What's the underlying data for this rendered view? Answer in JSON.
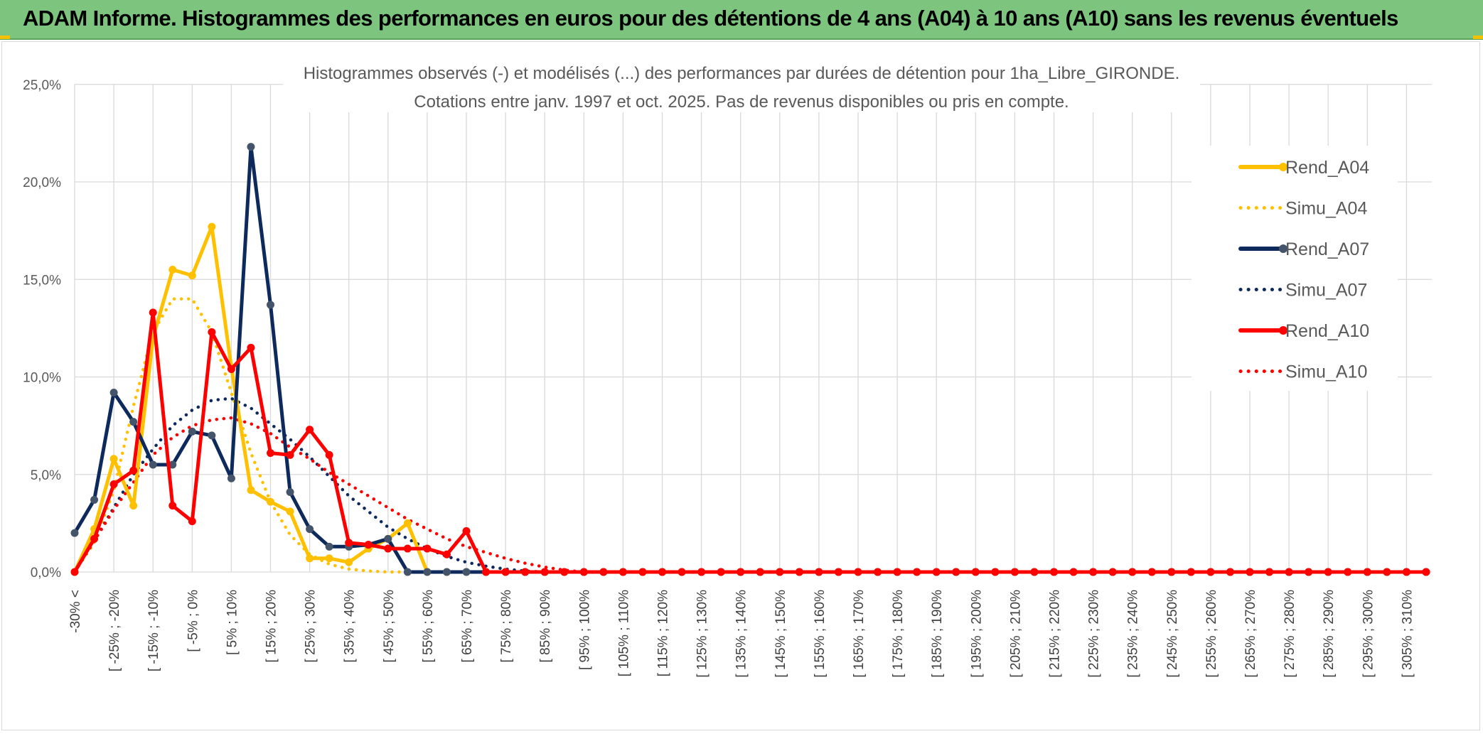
{
  "banner": {
    "title": "ADAM Informe. Histogrammes des performances en euros pour des détentions de 4 ans (A04) à 10 ans (A10) sans les revenus éventuels",
    "color": "#7dc57e"
  },
  "chart_data": {
    "type": "line",
    "title_line1": "Histogrammes observés (-) et modélisés (...) des performances par durées de détention pour 1ha_Libre_GIRONDE.",
    "title_line2": "Cotations entre janv. 1997 et oct. 2025. Pas de revenus disponibles ou pris en compte.",
    "ylim": [
      0,
      25
    ],
    "yticks": [
      "0,0%",
      "5,0%",
      "10,0%",
      "15,0%",
      "20,0%",
      "25,0%"
    ],
    "legend_position": "right",
    "x_labels": [
      "-30% <",
      "[ -25% ; -20%",
      "[ -15% ; -10%",
      "[ -5% ; 0%",
      "[ 5% ; 10%",
      "[ 15% ; 20%",
      "[ 25% ; 30%",
      "[ 35% ; 40%",
      "[ 45% ; 50%",
      "[ 55% ; 60%",
      "[ 65% ; 70%",
      "[ 75% ; 80%",
      "[ 85% ; 90%",
      "[ 95% ; 100%",
      "[ 105% ; 110%",
      "[ 115% ; 120%",
      "[ 125% ; 130%",
      "[ 135% ; 140%",
      "[ 145% ; 150%",
      "[ 155% ; 160%",
      "[ 165% ; 170%",
      "[ 175% ; 180%",
      "[ 185% ; 190%",
      "[ 195% ; 200%",
      "[ 205% ; 210%",
      "[ 215% ; 220%",
      "[ 225% ; 230%",
      "[ 235% ; 240%",
      "[ 245% ; 250%",
      "[ 255% ; 260%",
      "[ 265% ; 270%",
      "[ 275% ; 280%",
      "[ 285% ; 290%",
      "[ 295% ; 300%",
      "[ 305% ; 310%"
    ],
    "n_points": 70,
    "series": [
      {
        "name": "Rend_A04",
        "color": "#ffc000",
        "style": "solid",
        "markers": true,
        "values": [
          0,
          2.2,
          5.8,
          3.4,
          12.0,
          15.5,
          15.2,
          17.7,
          10.5,
          4.2,
          3.6,
          3.1,
          0.7,
          0.7,
          0.5,
          1.2,
          1.7,
          2.5,
          0.0,
          0.0,
          0.0,
          0.0,
          0.0,
          0.0
        ]
      },
      {
        "name": "Simu_A04",
        "color": "#ffc000",
        "style": "dotted",
        "markers": false,
        "values": [
          0,
          1.5,
          4.2,
          8.5,
          12.3,
          14.0,
          14.0,
          12.3,
          9.2,
          6.1,
          3.6,
          1.9,
          0.9,
          0.4,
          0.15,
          0.05,
          0.0
        ]
      },
      {
        "name": "Rend_A07",
        "color": "#0e2a5c",
        "style": "solid",
        "markers": true,
        "values": [
          2.0,
          3.7,
          9.2,
          7.7,
          5.5,
          5.5,
          7.2,
          7.0,
          4.8,
          21.8,
          13.7,
          4.1,
          2.2,
          1.3,
          1.3,
          1.4,
          1.7,
          0.0,
          0.0,
          0.0,
          0.0
        ]
      },
      {
        "name": "Simu_A07",
        "color": "#0e2a5c",
        "style": "dotted",
        "markers": false,
        "values": [
          0,
          1.6,
          3.3,
          5.0,
          6.3,
          7.5,
          8.3,
          8.8,
          8.9,
          8.4,
          7.6,
          6.8,
          5.9,
          4.9,
          3.9,
          3.1,
          2.3,
          1.7,
          1.2,
          0.8,
          0.5,
          0.3,
          0.15,
          0.05,
          0.0
        ]
      },
      {
        "name": "Rend_A10",
        "color": "#ff0000",
        "style": "solid",
        "markers": true,
        "values": [
          0,
          1.7,
          4.5,
          5.2,
          13.3,
          3.4,
          2.6,
          12.3,
          10.4,
          11.5,
          6.1,
          6.0,
          7.3,
          6.0,
          1.5,
          1.4,
          1.2,
          1.2,
          1.2,
          0.9,
          2.1,
          0.0
        ]
      },
      {
        "name": "Simu_A10",
        "color": "#ff0000",
        "style": "dotted",
        "markers": false,
        "values": [
          0,
          1.6,
          3.2,
          4.6,
          6.0,
          6.9,
          7.5,
          7.8,
          7.9,
          7.6,
          7.1,
          6.4,
          5.8,
          5.1,
          4.5,
          3.9,
          3.3,
          2.7,
          2.2,
          1.7,
          1.3,
          1.0,
          0.7,
          0.45,
          0.25,
          0.1,
          0.0
        ]
      }
    ]
  }
}
